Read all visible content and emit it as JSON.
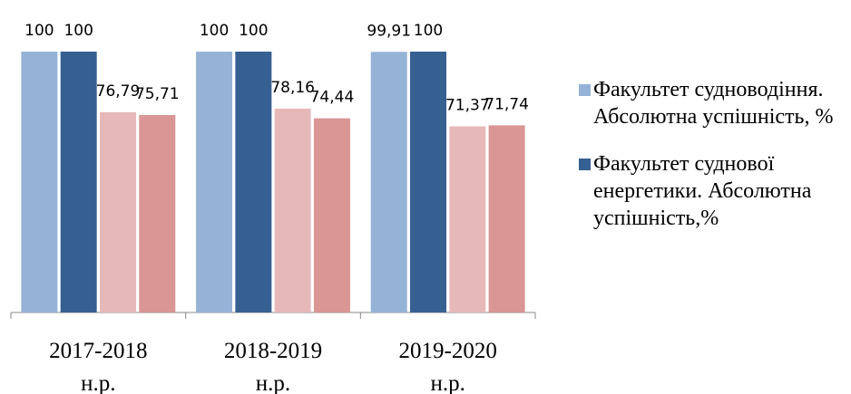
{
  "chart_data": {
    "type": "bar",
    "categories": [
      [
        "2017-2018",
        "н.р."
      ],
      [
        "2018-2019",
        "н.р."
      ],
      [
        "2019-2020",
        "н.р."
      ]
    ],
    "series": [
      {
        "name": "Факультет судноводіння. Абсолютна успішність, %",
        "color": "#95b3d7",
        "values": [
          100,
          100,
          99.91
        ],
        "value_labels": [
          "100",
          "100",
          "99,91"
        ]
      },
      {
        "name": "Факультет суднової енергетики. Абсолютна успішність,%",
        "color": "#376092",
        "values": [
          100,
          100,
          100
        ],
        "value_labels": [
          "100",
          "100",
          "100"
        ]
      },
      {
        "color": "#e6b9b8",
        "values": [
          76.79,
          78.16,
          71.37
        ],
        "value_labels": [
          "76,79",
          "78,16",
          "71,37"
        ]
      },
      {
        "color": "#d99694",
        "values": [
          75.71,
          74.44,
          71.74
        ],
        "value_labels": [
          "75,71",
          "74,44",
          "71,74"
        ]
      }
    ],
    "ylim": [
      0,
      100
    ]
  }
}
